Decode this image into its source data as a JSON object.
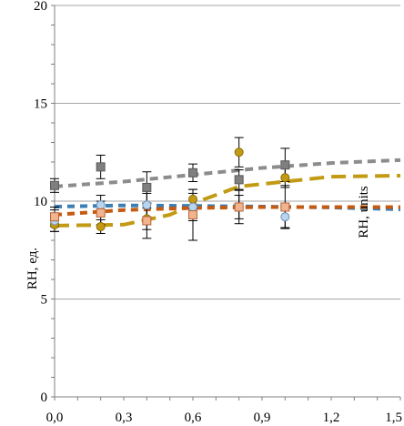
{
  "chart_data": {
    "type": "scatter",
    "xlim": [
      0,
      1.5
    ],
    "ylim": [
      0,
      20
    ],
    "x_ticks": [
      "0,0",
      "0,3",
      "0,6",
      "0,9",
      "1,2",
      "1,5"
    ],
    "x_tick_values": [
      0,
      0.3,
      0.6,
      0.9,
      1.2,
      1.5
    ],
    "y_ticks": [
      "0",
      "5",
      "10",
      "15",
      "20"
    ],
    "y_tick_values": [
      0,
      5,
      10,
      15,
      20
    ],
    "y_minor_step": 1,
    "x_minor_step": 0.1,
    "grid": "horizontal-major",
    "ylabel_lines": [
      "RH, units",
      "RH, ед."
    ],
    "xlabel": "",
    "title": "",
    "legend": "none",
    "series": [
      {
        "marker": "square",
        "color": "#7f7f7f",
        "stroke": "#5a5a5a",
        "x": [
          0,
          0.2,
          0.4,
          0.6,
          0.8,
          1.0
        ],
        "y": [
          10.8,
          11.75,
          10.7,
          11.45,
          11.1,
          11.85
        ],
        "err": [
          0.35,
          0.6,
          0.8,
          0.45,
          0.5,
          0.85
        ],
        "trend": {
          "color": "#8c8c8c",
          "dash": "9 6",
          "points": [
            [
              0,
              10.75
            ],
            [
              0.3,
              11.0
            ],
            [
              0.6,
              11.35
            ],
            [
              0.9,
              11.7
            ],
            [
              1.2,
              11.95
            ],
            [
              1.5,
              12.1
            ]
          ]
        }
      },
      {
        "marker": "circle",
        "color": "#c39a14",
        "stroke": "#8a6c00",
        "x": [
          0,
          0.2,
          0.4,
          0.6,
          0.8,
          1.0
        ],
        "y": [
          8.8,
          8.7,
          9.1,
          10.1,
          12.5,
          11.2
        ],
        "err": [
          0.35,
          0.35,
          0.55,
          0.5,
          0.75,
          0.5
        ],
        "trend": {
          "color": "#c39a14",
          "dash": "16 8",
          "points": [
            [
              0,
              8.75
            ],
            [
              0.3,
              8.8
            ],
            [
              0.5,
              9.3
            ],
            [
              0.65,
              10.1
            ],
            [
              0.8,
              10.75
            ],
            [
              1.0,
              11.0
            ],
            [
              1.2,
              11.25
            ],
            [
              1.5,
              11.3
            ]
          ]
        }
      },
      {
        "marker": "circle",
        "color": "#b8d4ee",
        "stroke": "#6f8fb0",
        "x": [
          0,
          0.2,
          0.4,
          0.6,
          0.8,
          1.0
        ],
        "y": [
          9.0,
          9.8,
          9.8,
          9.7,
          9.7,
          9.2
        ],
        "err": [
          0.55,
          0.5,
          0.6,
          0.7,
          0.6,
          0.55
        ],
        "trend": {
          "color": "#3d7fb5",
          "dash": "8 6",
          "points": [
            [
              0,
              9.72
            ],
            [
              0.3,
              9.78
            ],
            [
              0.6,
              9.76
            ],
            [
              0.9,
              9.72
            ],
            [
              1.2,
              9.68
            ],
            [
              1.5,
              9.58
            ]
          ]
        }
      },
      {
        "marker": "square",
        "color": "#f2b48e",
        "stroke": "#b5653a",
        "x": [
          0,
          0.2,
          0.4,
          0.6,
          0.8,
          1.0
        ],
        "y": [
          9.2,
          9.4,
          9.0,
          9.3,
          9.7,
          9.7
        ],
        "err": [
          0.5,
          0.6,
          0.9,
          1.3,
          0.85,
          1.1
        ],
        "trend": {
          "color": "#c55a11",
          "dash": "8 6",
          "points": [
            [
              0,
              9.3
            ],
            [
              0.3,
              9.55
            ],
            [
              0.6,
              9.65
            ],
            [
              0.9,
              9.7
            ],
            [
              1.2,
              9.7
            ],
            [
              1.5,
              9.7
            ]
          ]
        }
      }
    ]
  }
}
